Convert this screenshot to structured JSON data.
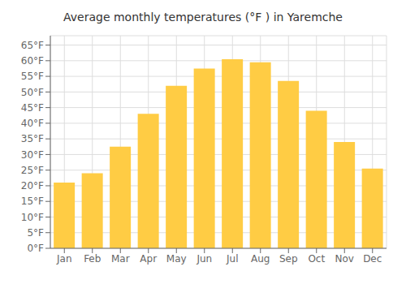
{
  "chart_data": {
    "type": "bar",
    "title": "Average monthly temperatures (°F ) in Yaremche",
    "categories": [
      "Jan",
      "Feb",
      "Mar",
      "Apr",
      "May",
      "Jun",
      "Jul",
      "Aug",
      "Sep",
      "Oct",
      "Nov",
      "Dec"
    ],
    "values": [
      21,
      24,
      32.5,
      43,
      52,
      57.5,
      60.5,
      59.5,
      53.5,
      44,
      34,
      25.5
    ],
    "color": "#FFCC44",
    "ylim": [
      0,
      68
    ],
    "yticks": [
      {
        "value": 0,
        "label": "0°F"
      },
      {
        "value": 5,
        "label": "5°F"
      },
      {
        "value": 10,
        "label": "10°F"
      },
      {
        "value": 15,
        "label": "15°F"
      },
      {
        "value": 20,
        "label": "20°F"
      },
      {
        "value": 25,
        "label": "25°F"
      },
      {
        "value": 30,
        "label": "30°F"
      },
      {
        "value": 35,
        "label": "35°F"
      },
      {
        "value": 40,
        "label": "40°F"
      },
      {
        "value": 45,
        "label": "45°F"
      },
      {
        "value": 50,
        "label": "50°F"
      },
      {
        "value": 55,
        "label": "55°F"
      },
      {
        "value": 60,
        "label": "60°F"
      },
      {
        "value": 65,
        "label": "65°F"
      }
    ],
    "grid": true
  }
}
